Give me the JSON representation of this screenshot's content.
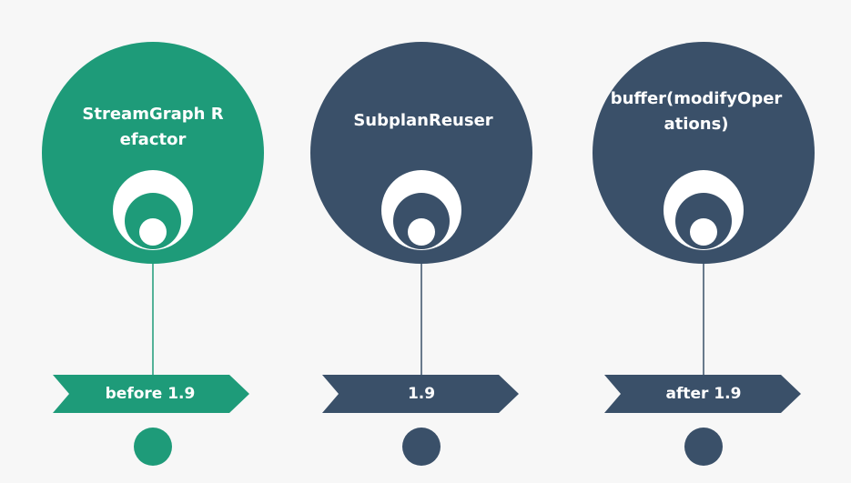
{
  "colors": {
    "background": "#f7f7f7",
    "green": "#1e9b79",
    "navy": "#3a5069",
    "white": "#ffffff"
  },
  "milestones": [
    {
      "title": "StreamGraph Refactor",
      "banner": "before 1.9",
      "color": "#1e9b79"
    },
    {
      "title": "SubplanReuser",
      "banner": "1.9",
      "color": "#3a5069"
    },
    {
      "title": "buffer(modifyOperations)",
      "banner": "after 1.9",
      "color": "#3a5069"
    }
  ]
}
